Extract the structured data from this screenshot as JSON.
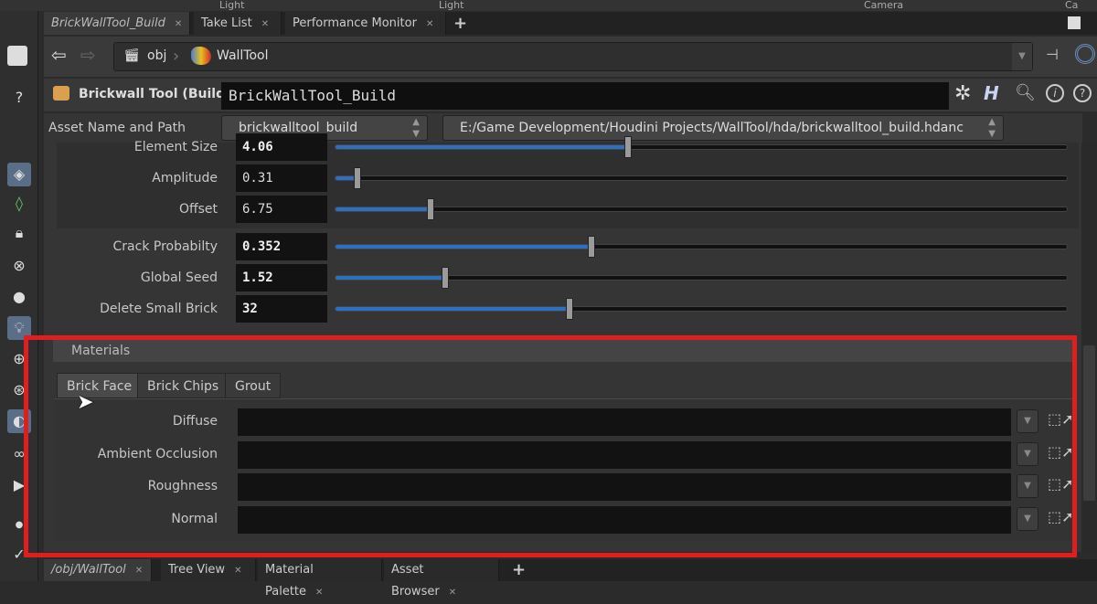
{
  "shelf": {
    "labels": [
      "Light",
      "Light",
      "Camera",
      "Ca"
    ]
  },
  "tabs": [
    {
      "label": "BrickWallTool_Build",
      "active": true
    },
    {
      "label": "Take List"
    },
    {
      "label": "Performance Monitor"
    }
  ],
  "path": {
    "root": "obj",
    "node": "WallTool"
  },
  "node": {
    "type_label": "Brickwall Tool (Build)",
    "name": "BrickWallTool_Build"
  },
  "asset": {
    "label": "Asset Name and Path",
    "name": "brickwalltool_build",
    "path": "E:/Game Development/Houdini Projects/WallTool/hda/brickwalltool_build.hdanc"
  },
  "params": [
    {
      "label": "Element Size",
      "value": "4.06",
      "fraction": 0.4,
      "bold": true
    },
    {
      "label": "Amplitude",
      "value": "0.31",
      "fraction": 0.03,
      "bold": false
    },
    {
      "label": "Offset",
      "value": "6.75",
      "fraction": 0.13,
      "bold": false
    },
    {
      "label": "Crack Probabilty",
      "value": "0.352",
      "fraction": 0.35,
      "bold": true
    },
    {
      "label": "Global Seed",
      "value": "1.52",
      "fraction": 0.15,
      "bold": true
    },
    {
      "label": "Delete Small Brick",
      "value": "32",
      "fraction": 0.32,
      "bold": true
    }
  ],
  "materials": {
    "title": "Materials",
    "tabs": [
      "Brick Face",
      "Brick Chips",
      "Grout"
    ],
    "active_tab": "Brick Face",
    "fields": [
      {
        "label": "Diffuse",
        "value": ""
      },
      {
        "label": "Ambient Occlusion",
        "value": ""
      },
      {
        "label": "Roughness",
        "value": ""
      },
      {
        "label": "Normal",
        "value": ""
      }
    ]
  },
  "bottom_tabs": [
    "/obj/WallTool",
    "Tree View",
    "Material Palette",
    "Asset Browser"
  ],
  "colors": {
    "highlight_box": "#e01e1e",
    "slider_fill": "#2d6fc0",
    "accent_selected": "#5a6e88"
  }
}
